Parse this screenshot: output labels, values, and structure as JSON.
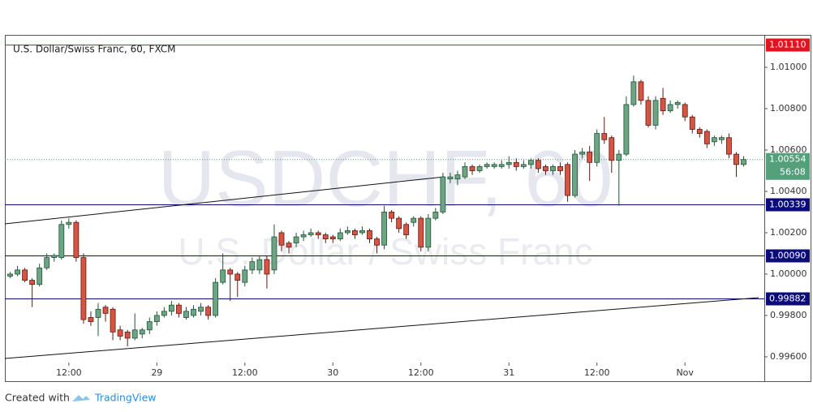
{
  "chart_data": {
    "type": "candlestick",
    "title": "U.S. Dollar/Swiss Franc, 60, FXCM",
    "watermark": "USDCHF, 60",
    "watermark_subtitle": "U.S. Dollar / Swiss Franc",
    "footer": {
      "prefix": "Created with",
      "brand": "TradingView"
    },
    "up_color": "#6ba583",
    "down_color": "#d75442",
    "categories": [
      null,
      null,
      null,
      null,
      null,
      null,
      null,
      null,
      "12:00",
      null,
      null,
      null,
      null,
      null,
      null,
      null,
      null,
      null,
      null,
      null,
      "29",
      null,
      null,
      null,
      null,
      null,
      null,
      null,
      null,
      null,
      null,
      null,
      "12:00",
      null,
      null,
      null,
      null,
      null,
      null,
      null,
      null,
      null,
      null,
      null,
      "30",
      null,
      null,
      null,
      null,
      null,
      null,
      null,
      null,
      null,
      null,
      null,
      "12:00",
      null,
      null,
      null,
      null,
      null,
      null,
      null,
      null,
      null,
      null,
      null,
      "31",
      null,
      null,
      null,
      null,
      null,
      null,
      null,
      null,
      null,
      null,
      null,
      "12:00",
      null,
      null,
      null,
      null,
      null,
      null,
      null,
      null,
      null,
      null,
      null,
      "Nov",
      null,
      null,
      null,
      null,
      null,
      null,
      null,
      null
    ],
    "open": [
      0.9999,
      1.0,
      1.0002,
      0.9997,
      0.9995,
      1.0003,
      1.0008,
      1.0008,
      1.0024,
      1.0025,
      1.0008,
      0.9979,
      0.9979,
      0.9984,
      0.9983,
      0.9973,
      0.9972,
      0.9969,
      0.9971,
      0.9973,
      0.9977,
      0.998,
      0.9982,
      0.9985,
      0.9979,
      0.998,
      0.9982,
      0.9984,
      0.998,
      0.9996,
      1.0002,
      1.0,
      0.9996,
      1.0002,
      1.0002,
      1.0007,
      1.0002,
      1.002,
      1.0015,
      1.0015,
      1.0018,
      1.0019,
      1.002,
      1.0019,
      1.0018,
      1.0017,
      1.002,
      1.0021,
      1.002,
      1.0021,
      1.0017,
      1.0014,
      1.003,
      1.0027,
      1.0024,
      1.0025,
      1.0027,
      1.0013,
      1.0027,
      1.003,
      1.0046,
      1.0046,
      1.0047,
      1.0052,
      1.005,
      1.0052,
      1.0052,
      1.0052,
      1.0053,
      1.0054,
      1.0052,
      1.0053,
      1.0055,
      1.0052,
      1.005,
      1.0052,
      1.0053,
      1.0038,
      1.0058,
      1.0059,
      1.0054,
      1.0068,
      1.0066,
      1.0055,
      1.0058,
      1.0082,
      1.0093,
      1.0084,
      1.0072,
      1.0085,
      1.0079,
      1.0082,
      1.0082,
      1.0076,
      1.007,
      1.0069,
      1.0064,
      1.0065,
      1.0066,
      1.0058,
      1.0053
    ],
    "high": [
      1.0001,
      1.0004,
      1.0003,
      0.9998,
      1.0005,
      1.001,
      1.001,
      1.0026,
      1.0027,
      1.0026,
      1.001,
      0.9982,
      0.9986,
      0.9985,
      0.9984,
      0.9975,
      0.9973,
      0.9981,
      0.9974,
      0.9979,
      0.9982,
      0.9984,
      0.9987,
      0.9986,
      0.9984,
      0.9985,
      0.9986,
      0.9985,
      0.9998,
      1.001,
      1.0003,
      1.0001,
      1.0004,
      1.0008,
      1.0009,
      1.0009,
      1.0024,
      1.0021,
      1.0016,
      1.002,
      1.0021,
      1.0022,
      1.0021,
      1.002,
      1.0019,
      1.0022,
      1.0023,
      1.0022,
      1.0023,
      1.0022,
      1.0018,
      1.0033,
      1.0031,
      1.0028,
      1.0025,
      1.0028,
      1.0028,
      1.0029,
      1.0032,
      1.0049,
      1.0049,
      1.005,
      1.0054,
      1.0053,
      1.0053,
      1.0054,
      1.0054,
      1.0055,
      1.0057,
      1.0056,
      1.0055,
      1.0056,
      1.0056,
      1.0053,
      1.0053,
      1.0054,
      1.0054,
      1.006,
      1.0061,
      1.0062,
      1.007,
      1.0076,
      1.0067,
      1.006,
      1.0086,
      1.0096,
      1.0094,
      1.0086,
      1.0086,
      1.009,
      1.0084,
      1.0084,
      1.0083,
      1.0077,
      1.0071,
      1.007,
      1.0067,
      1.0067,
      1.0068,
      1.0059,
      1.0057
    ],
    "low": [
      0.9998,
      0.9999,
      0.9996,
      0.9984,
      0.9994,
      1.0002,
      1.0006,
      1.0007,
      1.0022,
      1.0006,
      0.9976,
      0.9975,
      0.997,
      0.9977,
      0.9968,
      0.9968,
      0.9965,
      0.9968,
      0.9969,
      0.9971,
      0.9975,
      0.9979,
      0.998,
      0.9979,
      0.9978,
      0.9979,
      0.998,
      0.9978,
      0.9979,
      0.9995,
      0.9987,
      0.9989,
      0.9994,
      1.0,
      1.0,
      0.9993,
      1.0,
      1.0011,
      1.001,
      1.0013,
      1.0016,
      1.0018,
      1.0017,
      1.0015,
      1.0015,
      1.0016,
      1.0019,
      1.0017,
      1.0019,
      1.0015,
      1.001,
      1.0012,
      1.0025,
      1.002,
      1.0017,
      1.0023,
      1.0011,
      1.0011,
      1.0026,
      1.0029,
      1.0044,
      1.0043,
      1.0046,
      1.0048,
      1.0049,
      1.0051,
      1.0051,
      1.0051,
      1.0051,
      1.005,
      1.0051,
      1.0051,
      1.0049,
      1.0048,
      1.0048,
      1.0048,
      1.0035,
      1.0037,
      1.0056,
      1.0045,
      1.0052,
      1.0063,
      1.0049,
      1.0033,
      1.0057,
      1.0081,
      1.0082,
      1.0071,
      1.007,
      1.0077,
      1.0078,
      1.008,
      1.0074,
      1.0068,
      1.0066,
      1.0061,
      1.0062,
      1.0063,
      1.0056,
      1.0047,
      1.0052
    ],
    "close": [
      1.0,
      1.0002,
      0.9997,
      0.9995,
      1.0003,
      1.0008,
      1.0009,
      1.0024,
      1.0025,
      1.0008,
      0.9978,
      0.9977,
      0.9983,
      0.9981,
      0.9972,
      0.997,
      0.9969,
      0.9973,
      0.9973,
      0.9977,
      0.998,
      0.9982,
      0.9985,
      0.9981,
      0.9982,
      0.9983,
      0.9984,
      0.998,
      0.9996,
      1.0002,
      1.0,
      0.9997,
      1.0002,
      1.0006,
      1.0007,
      1.0,
      1.0018,
      1.0014,
      1.0013,
      1.0018,
      1.0019,
      1.002,
      1.0019,
      1.0017,
      1.0017,
      1.002,
      1.0021,
      1.0019,
      1.0021,
      1.0017,
      1.0014,
      1.003,
      1.0027,
      1.0022,
      1.0019,
      1.0027,
      1.0013,
      1.0027,
      1.003,
      1.0047,
      1.0047,
      1.0048,
      1.0052,
      1.005,
      1.0052,
      1.0053,
      1.0053,
      1.0053,
      1.0054,
      1.0052,
      1.0053,
      1.0055,
      1.0051,
      1.005,
      1.0052,
      1.005,
      1.0038,
      1.0058,
      1.0059,
      1.0054,
      1.0068,
      1.0065,
      1.0055,
      1.0058,
      1.0082,
      1.0093,
      1.0084,
      1.0072,
      1.0084,
      1.0079,
      1.0082,
      1.0083,
      1.0076,
      1.007,
      1.0068,
      1.0063,
      1.0066,
      1.0066,
      1.0058,
      1.0053,
      1.00554
    ],
    "ylim": [
      0.99482,
      1.01157
    ],
    "yticks": [
      {
        "value": 0.996,
        "label": "0.99600"
      },
      {
        "value": 0.998,
        "label": "0.99800"
      },
      {
        "value": 1.0,
        "label": "1.00000"
      },
      {
        "value": 1.002,
        "label": "1.00200"
      },
      {
        "value": 1.004,
        "label": "1.00400"
      },
      {
        "value": 1.006,
        "label": "1.00600"
      },
      {
        "value": 1.008,
        "label": "1.00800"
      },
      {
        "value": 1.01,
        "label": "1.01000"
      }
    ],
    "grid": false,
    "levels": [
      {
        "value": 1.0111,
        "label": "1.01110",
        "color": "#e5131f"
      },
      {
        "value": 1.00339,
        "label": "1.00339",
        "color": "#0b0b7a"
      },
      {
        "value": 1.0009,
        "label": "1.00090",
        "color": "#0b0b7a"
      },
      {
        "value": 0.99882,
        "label": "0.99882",
        "color": "#0b0b7a"
      }
    ],
    "last_price": {
      "value": 1.00554,
      "label": "1.00554",
      "countdown": "56:08",
      "color": "#53a07b"
    }
  }
}
